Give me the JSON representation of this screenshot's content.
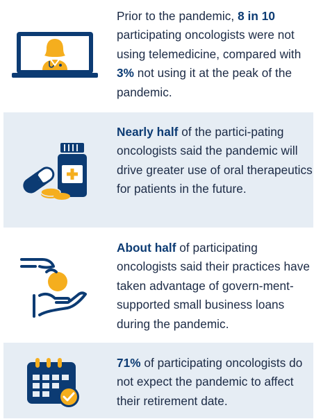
{
  "colors": {
    "navy": "#0c3b73",
    "gold": "#f5ae1e",
    "text": "#1b2a45",
    "panel": "#e6edf4"
  },
  "facts": [
    {
      "icon": "telemedicine-laptop-doctor-icon",
      "p1": "Prior to the pandemic, ",
      "h1": "8 in 10",
      "p2": " participating oncologists were not using telemedicine, compared with ",
      "h2": "3%",
      "p3": " not using it at the peak of the pandemic."
    },
    {
      "icon": "pill-bottle-icon",
      "h1": "Nearly half",
      "p1": " of the partici-pating oncologists said the pandemic will drive greater use of oral therapeutics for patients in the future."
    },
    {
      "icon": "hand-giving-coin-icon",
      "h1": "About half",
      "p1": " of participating oncologists said their practices have taken advantage of govern-ment-supported small business loans during the pandemic."
    },
    {
      "icon": "calendar-check-icon",
      "h1": "71%",
      "p1": " of participating oncologists do not expect the pandemic to affect their retirement date."
    }
  ]
}
